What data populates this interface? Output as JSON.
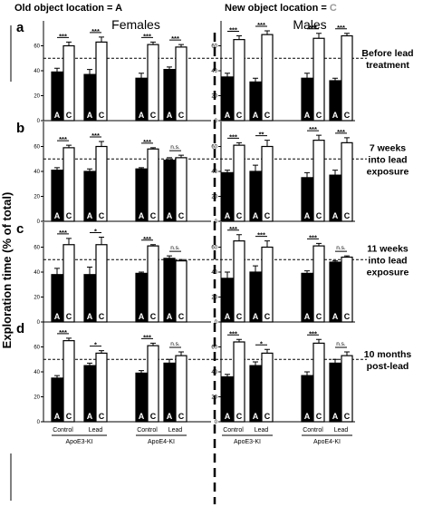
{
  "legend": {
    "old_label": "Old object location = A",
    "new_prefix": "New object location = ",
    "new_letter": "C",
    "new_color": "#9a9a9a"
  },
  "sex_labels": [
    "Females",
    "Males"
  ],
  "ylabel": "Exploration time (% of total)",
  "bar_letters": [
    "A",
    "C"
  ],
  "colors": {
    "old": "#000000",
    "new": "#ffffff",
    "text_new": "#000000"
  },
  "x_labels": {
    "treatments": [
      "Control",
      "Lead"
    ],
    "genotypes": [
      "ApoE3-KI",
      "ApoE4-KI",
      "ApoE3-KI",
      "ApoE4-KI"
    ]
  },
  "chart_data": [
    {
      "type": "bar",
      "panel": "a",
      "timepoint": [
        "Before lead",
        "treatment"
      ],
      "ylim": [
        0,
        80
      ],
      "yticks": [
        0,
        20,
        40,
        60
      ],
      "reference_line": 50,
      "groups": [
        {
          "sex": "Females",
          "genotype": "ApoE3-KI",
          "treatment": "Control",
          "A": 39,
          "C": 60,
          "A_err": 3,
          "C_err": 3,
          "sig": "***"
        },
        {
          "sex": "Females",
          "genotype": "ApoE3-KI",
          "treatment": "Lead",
          "A": 37,
          "C": 63,
          "A_err": 4,
          "C_err": 4,
          "sig": "***"
        },
        {
          "sex": "Females",
          "genotype": "ApoE4-KI",
          "treatment": "Control",
          "A": 34,
          "C": 61,
          "A_err": 4,
          "C_err": 2,
          "sig": "***"
        },
        {
          "sex": "Females",
          "genotype": "ApoE4-KI",
          "treatment": "Lead",
          "A": 41,
          "C": 59,
          "A_err": 2,
          "C_err": 2,
          "sig": "***"
        },
        {
          "sex": "Males",
          "genotype": "ApoE3-KI",
          "treatment": "Control",
          "A": 35,
          "C": 65,
          "A_err": 3,
          "C_err": 3,
          "sig": "***"
        },
        {
          "sex": "Males",
          "genotype": "ApoE3-KI",
          "treatment": "Lead",
          "A": 31,
          "C": 69,
          "A_err": 3,
          "C_err": 3,
          "sig": "***"
        },
        {
          "sex": "Males",
          "genotype": "ApoE4-KI",
          "treatment": "Control",
          "A": 34,
          "C": 66,
          "A_err": 4,
          "C_err": 4,
          "sig": "***"
        },
        {
          "sex": "Males",
          "genotype": "ApoE4-KI",
          "treatment": "Lead",
          "A": 32,
          "C": 68,
          "A_err": 2,
          "C_err": 2,
          "sig": "***"
        }
      ]
    },
    {
      "type": "bar",
      "panel": "b",
      "timepoint": [
        "7 weeks",
        "into lead",
        "exposure"
      ],
      "ylim": [
        0,
        80
      ],
      "yticks": [
        0,
        20,
        40,
        60
      ],
      "reference_line": 50,
      "groups": [
        {
          "sex": "Females",
          "genotype": "ApoE3-KI",
          "treatment": "Control",
          "A": 41,
          "C": 59,
          "A_err": 2,
          "C_err": 2,
          "sig": "***"
        },
        {
          "sex": "Females",
          "genotype": "ApoE3-KI",
          "treatment": "Lead",
          "A": 40,
          "C": 60,
          "A_err": 2,
          "C_err": 4,
          "sig": "***"
        },
        {
          "sex": "Females",
          "genotype": "ApoE4-KI",
          "treatment": "Control",
          "A": 42,
          "C": 58,
          "A_err": 1,
          "C_err": 1,
          "sig": "***"
        },
        {
          "sex": "Females",
          "genotype": "ApoE4-KI",
          "treatment": "Lead",
          "A": 49,
          "C": 51,
          "A_err": 2,
          "C_err": 2,
          "sig": "n.s."
        },
        {
          "sex": "Males",
          "genotype": "ApoE3-KI",
          "treatment": "Control",
          "A": 39,
          "C": 61,
          "A_err": 2,
          "C_err": 2,
          "sig": "***"
        },
        {
          "sex": "Males",
          "genotype": "ApoE3-KI",
          "treatment": "Lead",
          "A": 40,
          "C": 60,
          "A_err": 5,
          "C_err": 5,
          "sig": "**"
        },
        {
          "sex": "Males",
          "genotype": "ApoE4-KI",
          "treatment": "Control",
          "A": 35,
          "C": 65,
          "A_err": 4,
          "C_err": 4,
          "sig": "***"
        },
        {
          "sex": "Males",
          "genotype": "ApoE4-KI",
          "treatment": "Lead",
          "A": 37,
          "C": 63,
          "A_err": 4,
          "C_err": 4,
          "sig": "***"
        }
      ]
    },
    {
      "type": "bar",
      "panel": "c",
      "timepoint": [
        "11 weeks",
        "into lead",
        "exposure"
      ],
      "ylim": [
        0,
        80
      ],
      "yticks": [
        0,
        20,
        40,
        60
      ],
      "reference_line": 50,
      "groups": [
        {
          "sex": "Females",
          "genotype": "ApoE3-KI",
          "treatment": "Control",
          "A": 38,
          "C": 62,
          "A_err": 5,
          "C_err": 5,
          "sig": "***"
        },
        {
          "sex": "Females",
          "genotype": "ApoE3-KI",
          "treatment": "Lead",
          "A": 38,
          "C": 62,
          "A_err": 6,
          "C_err": 6,
          "sig": "*"
        },
        {
          "sex": "Females",
          "genotype": "ApoE4-KI",
          "treatment": "Control",
          "A": 39,
          "C": 61,
          "A_err": 1,
          "C_err": 1,
          "sig": "***"
        },
        {
          "sex": "Females",
          "genotype": "ApoE4-KI",
          "treatment": "Lead",
          "A": 51,
          "C": 49,
          "A_err": 2,
          "C_err": 1,
          "sig": "n.s."
        },
        {
          "sex": "Males",
          "genotype": "ApoE3-KI",
          "treatment": "Control",
          "A": 35,
          "C": 65,
          "A_err": 5,
          "C_err": 5,
          "sig": "***"
        },
        {
          "sex": "Males",
          "genotype": "ApoE3-KI",
          "treatment": "Lead",
          "A": 40,
          "C": 60,
          "A_err": 5,
          "C_err": 5,
          "sig": "***"
        },
        {
          "sex": "Males",
          "genotype": "ApoE4-KI",
          "treatment": "Control",
          "A": 39,
          "C": 61,
          "A_err": 2,
          "C_err": 2,
          "sig": "***"
        },
        {
          "sex": "Males",
          "genotype": "ApoE4-KI",
          "treatment": "Lead",
          "A": 48,
          "C": 52,
          "A_err": 1,
          "C_err": 1,
          "sig": "n.s."
        }
      ]
    },
    {
      "type": "bar",
      "panel": "d",
      "timepoint": [
        "10 months",
        "post-lead"
      ],
      "ylim": [
        0,
        80
      ],
      "yticks": [
        0,
        20,
        40,
        60
      ],
      "reference_line": 50,
      "groups": [
        {
          "sex": "Females",
          "genotype": "ApoE3-KI",
          "treatment": "Control",
          "A": 35,
          "C": 65,
          "A_err": 2,
          "C_err": 2,
          "sig": "***"
        },
        {
          "sex": "Females",
          "genotype": "ApoE3-KI",
          "treatment": "Lead",
          "A": 45,
          "C": 55,
          "A_err": 2,
          "C_err": 2,
          "sig": "*"
        },
        {
          "sex": "Females",
          "genotype": "ApoE4-KI",
          "treatment": "Control",
          "A": 39,
          "C": 61,
          "A_err": 2,
          "C_err": 2,
          "sig": "***"
        },
        {
          "sex": "Females",
          "genotype": "ApoE4-KI",
          "treatment": "Lead",
          "A": 47,
          "C": 53,
          "A_err": 3,
          "C_err": 3,
          "sig": "n.s."
        },
        {
          "sex": "Males",
          "genotype": "ApoE3-KI",
          "treatment": "Control",
          "A": 36,
          "C": 64,
          "A_err": 2,
          "C_err": 2,
          "sig": "***"
        },
        {
          "sex": "Males",
          "genotype": "ApoE3-KI",
          "treatment": "Lead",
          "A": 45,
          "C": 55,
          "A_err": 3,
          "C_err": 3,
          "sig": "*"
        },
        {
          "sex": "Males",
          "genotype": "ApoE4-KI",
          "treatment": "Control",
          "A": 37,
          "C": 63,
          "A_err": 3,
          "C_err": 3,
          "sig": "***"
        },
        {
          "sex": "Males",
          "genotype": "ApoE4-KI",
          "treatment": "Lead",
          "A": 47,
          "C": 53,
          "A_err": 3,
          "C_err": 3,
          "sig": "n.s."
        }
      ]
    }
  ]
}
